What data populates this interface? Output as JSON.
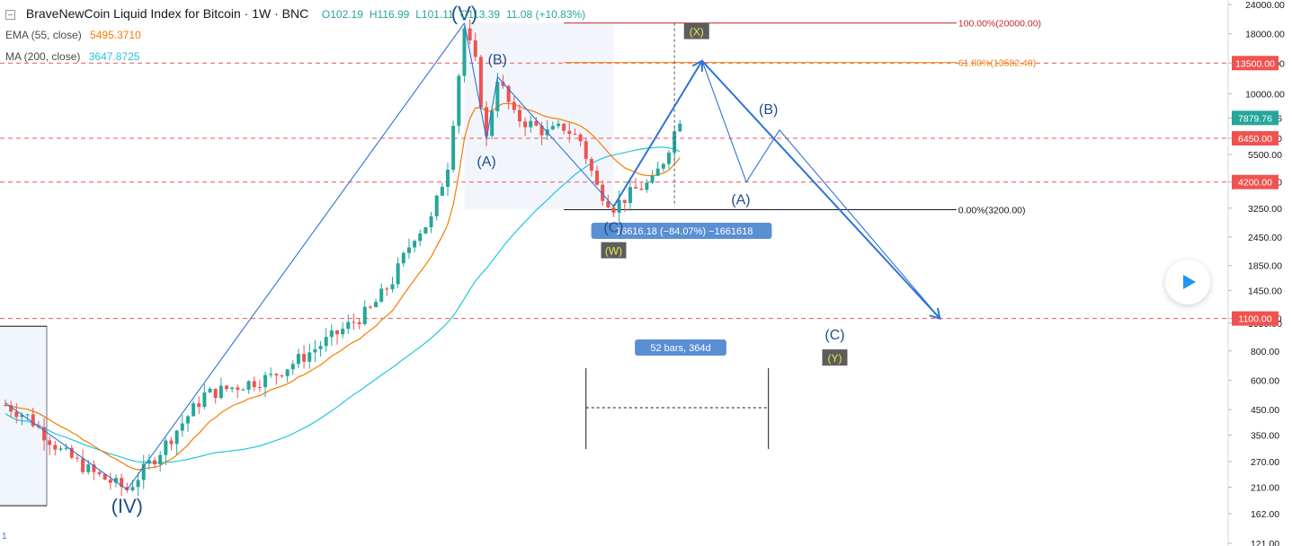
{
  "legend": {
    "symbol_title": "BraveNewCoin Liquid Index for Bitcoin · 1W · BNC",
    "ohlc": {
      "open": "O102.19",
      "high": "H116.99",
      "low": "L101.11",
      "close": "C113.39"
    },
    "change": "11.08 (+10.83%)",
    "ema_label": "EMA (55, close)",
    "ema_value": "5495.3710",
    "ma_label": "MA (200, close)",
    "ma_value": "3647.8725"
  },
  "colors": {
    "up": "#26a69a",
    "down": "#ef5350",
    "ema": "#f57c00",
    "ma": "#26c6da",
    "wave": "#2f73d6",
    "label_dark": "#1e4e8c",
    "hline": "#ef5350",
    "axis_text": "#131722"
  },
  "chart_data": {
    "type": "candlestick",
    "scale": "log",
    "ylim": [
      135,
      25000
    ],
    "y_ticks": [
      "24000.00",
      "18000.00",
      "13500.00",
      "10000.00",
      "7879.76",
      "6450.00",
      "5500.00",
      "4200.00",
      "3250.00",
      "2450.00",
      "1850.00",
      "1450.00",
      "1100.00",
      "1050.00",
      "800.00",
      "600.00",
      "450.00",
      "350.00",
      "270.00",
      "210.00",
      "162.00",
      "121.00"
    ],
    "price_tags": [
      {
        "value": 13500,
        "label": "13500.00",
        "color": "#ef5350"
      },
      {
        "value": 6450,
        "label": "6450.00",
        "color": "#ef5350"
      },
      {
        "value": 4200,
        "label": "4200.00",
        "color": "#ef5350"
      },
      {
        "value": 1100,
        "label": "1100.00",
        "color": "#ef5350"
      },
      {
        "value": 7879.76,
        "label": "7879.76",
        "color": "#26a69a"
      }
    ],
    "horizontal_lines": [
      13500,
      6450,
      4200,
      1100
    ],
    "fibonacci": [
      {
        "label": "100.00%(20000.00)",
        "value": 20000,
        "color": "#c62828"
      },
      {
        "label": "61.80%(13582.40)",
        "value": 13582.4,
        "color": "#f57c00"
      },
      {
        "label": "0.00%(3200.00)",
        "value": 3200,
        "color": "#131722"
      }
    ],
    "wave_labels": [
      {
        "text": "(V)",
        "value": 22000,
        "bar": 83,
        "style": "big"
      },
      {
        "text": "(IV)",
        "value": 175,
        "bar": 22,
        "style": "big"
      },
      {
        "text": "(B)",
        "value": 14000,
        "bar": 89,
        "style": "mid"
      },
      {
        "text": "(A)",
        "value": 5150,
        "bar": 87,
        "style": "mid"
      },
      {
        "text": "(C)",
        "value": 2700,
        "bar": 110,
        "style": "mid"
      },
      {
        "text": "(W)",
        "value": 2150,
        "bar": 110,
        "style": "tag"
      },
      {
        "text": "(X)",
        "value": 18500,
        "bar": 125,
        "style": "tag"
      },
      {
        "text": "(B)",
        "value": 8600,
        "bar": 138,
        "style": "mid"
      },
      {
        "text": "(A)",
        "value": 3550,
        "bar": 133,
        "style": "mid"
      },
      {
        "text": "(C)",
        "value": 940,
        "bar": 150,
        "style": "mid"
      },
      {
        "text": "(Y)",
        "value": 750,
        "bar": 150,
        "style": "tag"
      }
    ],
    "measure_labels": {
      "price_range": "−16616.18 (−84.07%) −1661618",
      "date_range": "52 bars, 364d"
    },
    "corner_label": "1"
  }
}
